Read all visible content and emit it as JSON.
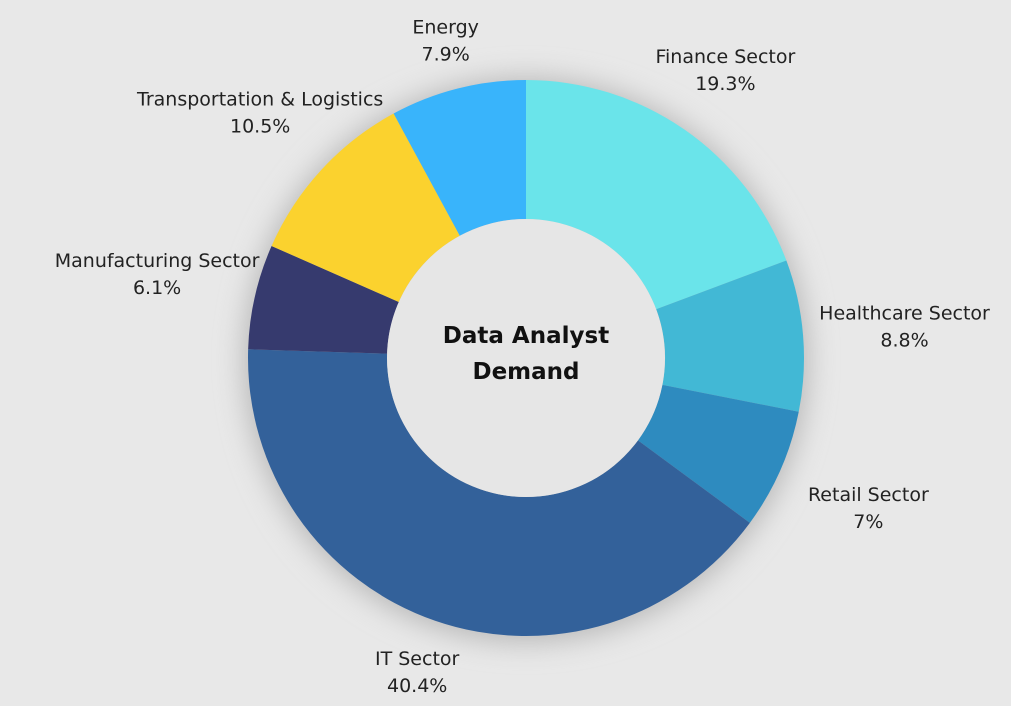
{
  "chart_data": {
    "type": "donut",
    "title": "Data Analyst Demand",
    "categories": [
      "Finance Sector",
      "Healthcare Sector",
      "Retail Sector",
      "IT Sector",
      "Manufacturing Sector",
      "Transportation & Logistics",
      "Energy"
    ],
    "values": [
      19.3,
      8.8,
      7,
      40.4,
      6.1,
      10.5,
      7.9
    ],
    "value_labels": [
      "19.3%",
      "8.8%",
      "7%",
      "40.4%",
      "6.1%",
      "10.5%",
      "7.9%"
    ],
    "colors": [
      "#6ae4ea",
      "#42b8d5",
      "#2e8bbf",
      "#33619a",
      "#363a6e",
      "#fbd22e",
      "#39b4fb"
    ]
  }
}
